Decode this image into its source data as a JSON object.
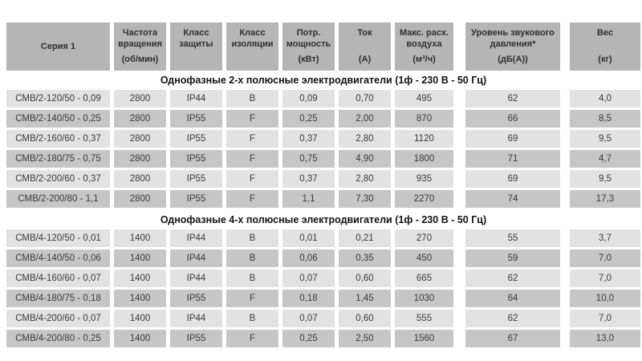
{
  "table": {
    "columns": [
      {
        "label": "Серия 1",
        "unit": ""
      },
      {
        "label": "Частота вращения",
        "unit": "(об/мин)"
      },
      {
        "label": "Класс защиты",
        "unit": ""
      },
      {
        "label": "Класс изоляции",
        "unit": ""
      },
      {
        "label": "Потр. мощность",
        "unit": "(кВт)"
      },
      {
        "label": "Ток",
        "unit": "(А)"
      },
      {
        "label": "Макс. расх. воздуха",
        "unit": "(м³/ч)"
      },
      {
        "label": "Уровень звукового давления*",
        "unit": "(дБ(А))"
      },
      {
        "label": "Вес",
        "unit": "(кг)"
      }
    ],
    "sections": [
      {
        "title": "Однофазные 2-х полюсные электродвигатели (1ф - 230 В - 50 Гц)",
        "rows": [
          [
            "СМВ/2-120/50 - 0,09",
            "2800",
            "IP44",
            "B",
            "0,09",
            "0,70",
            "495",
            "62",
            "4,0"
          ],
          [
            "СМВ/2-140/50 - 0,25",
            "2800",
            "IP55",
            "F",
            "0,25",
            "2,00",
            "870",
            "66",
            "8,5"
          ],
          [
            "СМВ/2-160/60 - 0,37",
            "2800",
            "IP55",
            "F",
            "0,37",
            "2,80",
            "1120",
            "69",
            "9,5"
          ],
          [
            "СМВ/2-180/75 - 0,75",
            "2800",
            "IP55",
            "F",
            "0,75",
            "4,90",
            "1800",
            "71",
            "4,7"
          ],
          [
            "СМВ/2-200/60 - 0,37",
            "2800",
            "IP55",
            "F",
            "0,37",
            "2,80",
            "935",
            "69",
            "9,5"
          ],
          [
            "СМВ/2-200/80 - 1,1",
            "2800",
            "IP55",
            "F",
            "1,1",
            "7,30",
            "2270",
            "74",
            "17,3"
          ]
        ]
      },
      {
        "title": "Однофазные 4-х полюсные электродвигатели (1ф - 230 В - 50 Гц)",
        "rows": [
          [
            "СМВ/4-120/50 - 0,01",
            "1400",
            "IP44",
            "B",
            "0,01",
            "0,21",
            "270",
            "55",
            "3,7"
          ],
          [
            "СМВ/4-140/50 - 0,06",
            "1400",
            "IP44",
            "B",
            "0,06",
            "0,35",
            "450",
            "59",
            "7,0"
          ],
          [
            "СМВ/4-160/60 - 0,07",
            "1400",
            "IP44",
            "B",
            "0,07",
            "0,60",
            "665",
            "62",
            "7,0"
          ],
          [
            "СМВ/4-180/75 - 0,18",
            "1400",
            "IP55",
            "F",
            "0,18",
            "1,45",
            "1030",
            "64",
            "10,0"
          ],
          [
            "СМВ/4-200/60 - 0,07",
            "1400",
            "IP44",
            "B",
            "0,07",
            "0,60",
            "555",
            "62",
            "7,0"
          ],
          [
            "СМВ/4-200/80 - 0,25",
            "1400",
            "IP55",
            "F",
            "0,25",
            "2,50",
            "1560",
            "67",
            "13,0"
          ]
        ]
      }
    ],
    "colors": {
      "header_bg": "#b5b5b5",
      "row_light_bg": "#e2e2e2",
      "row_dark_bg": "#c6c6c6",
      "cell_text": "#3a3a3a",
      "header_text": "#2e2e2e",
      "section_title_text": "#121212"
    }
  }
}
